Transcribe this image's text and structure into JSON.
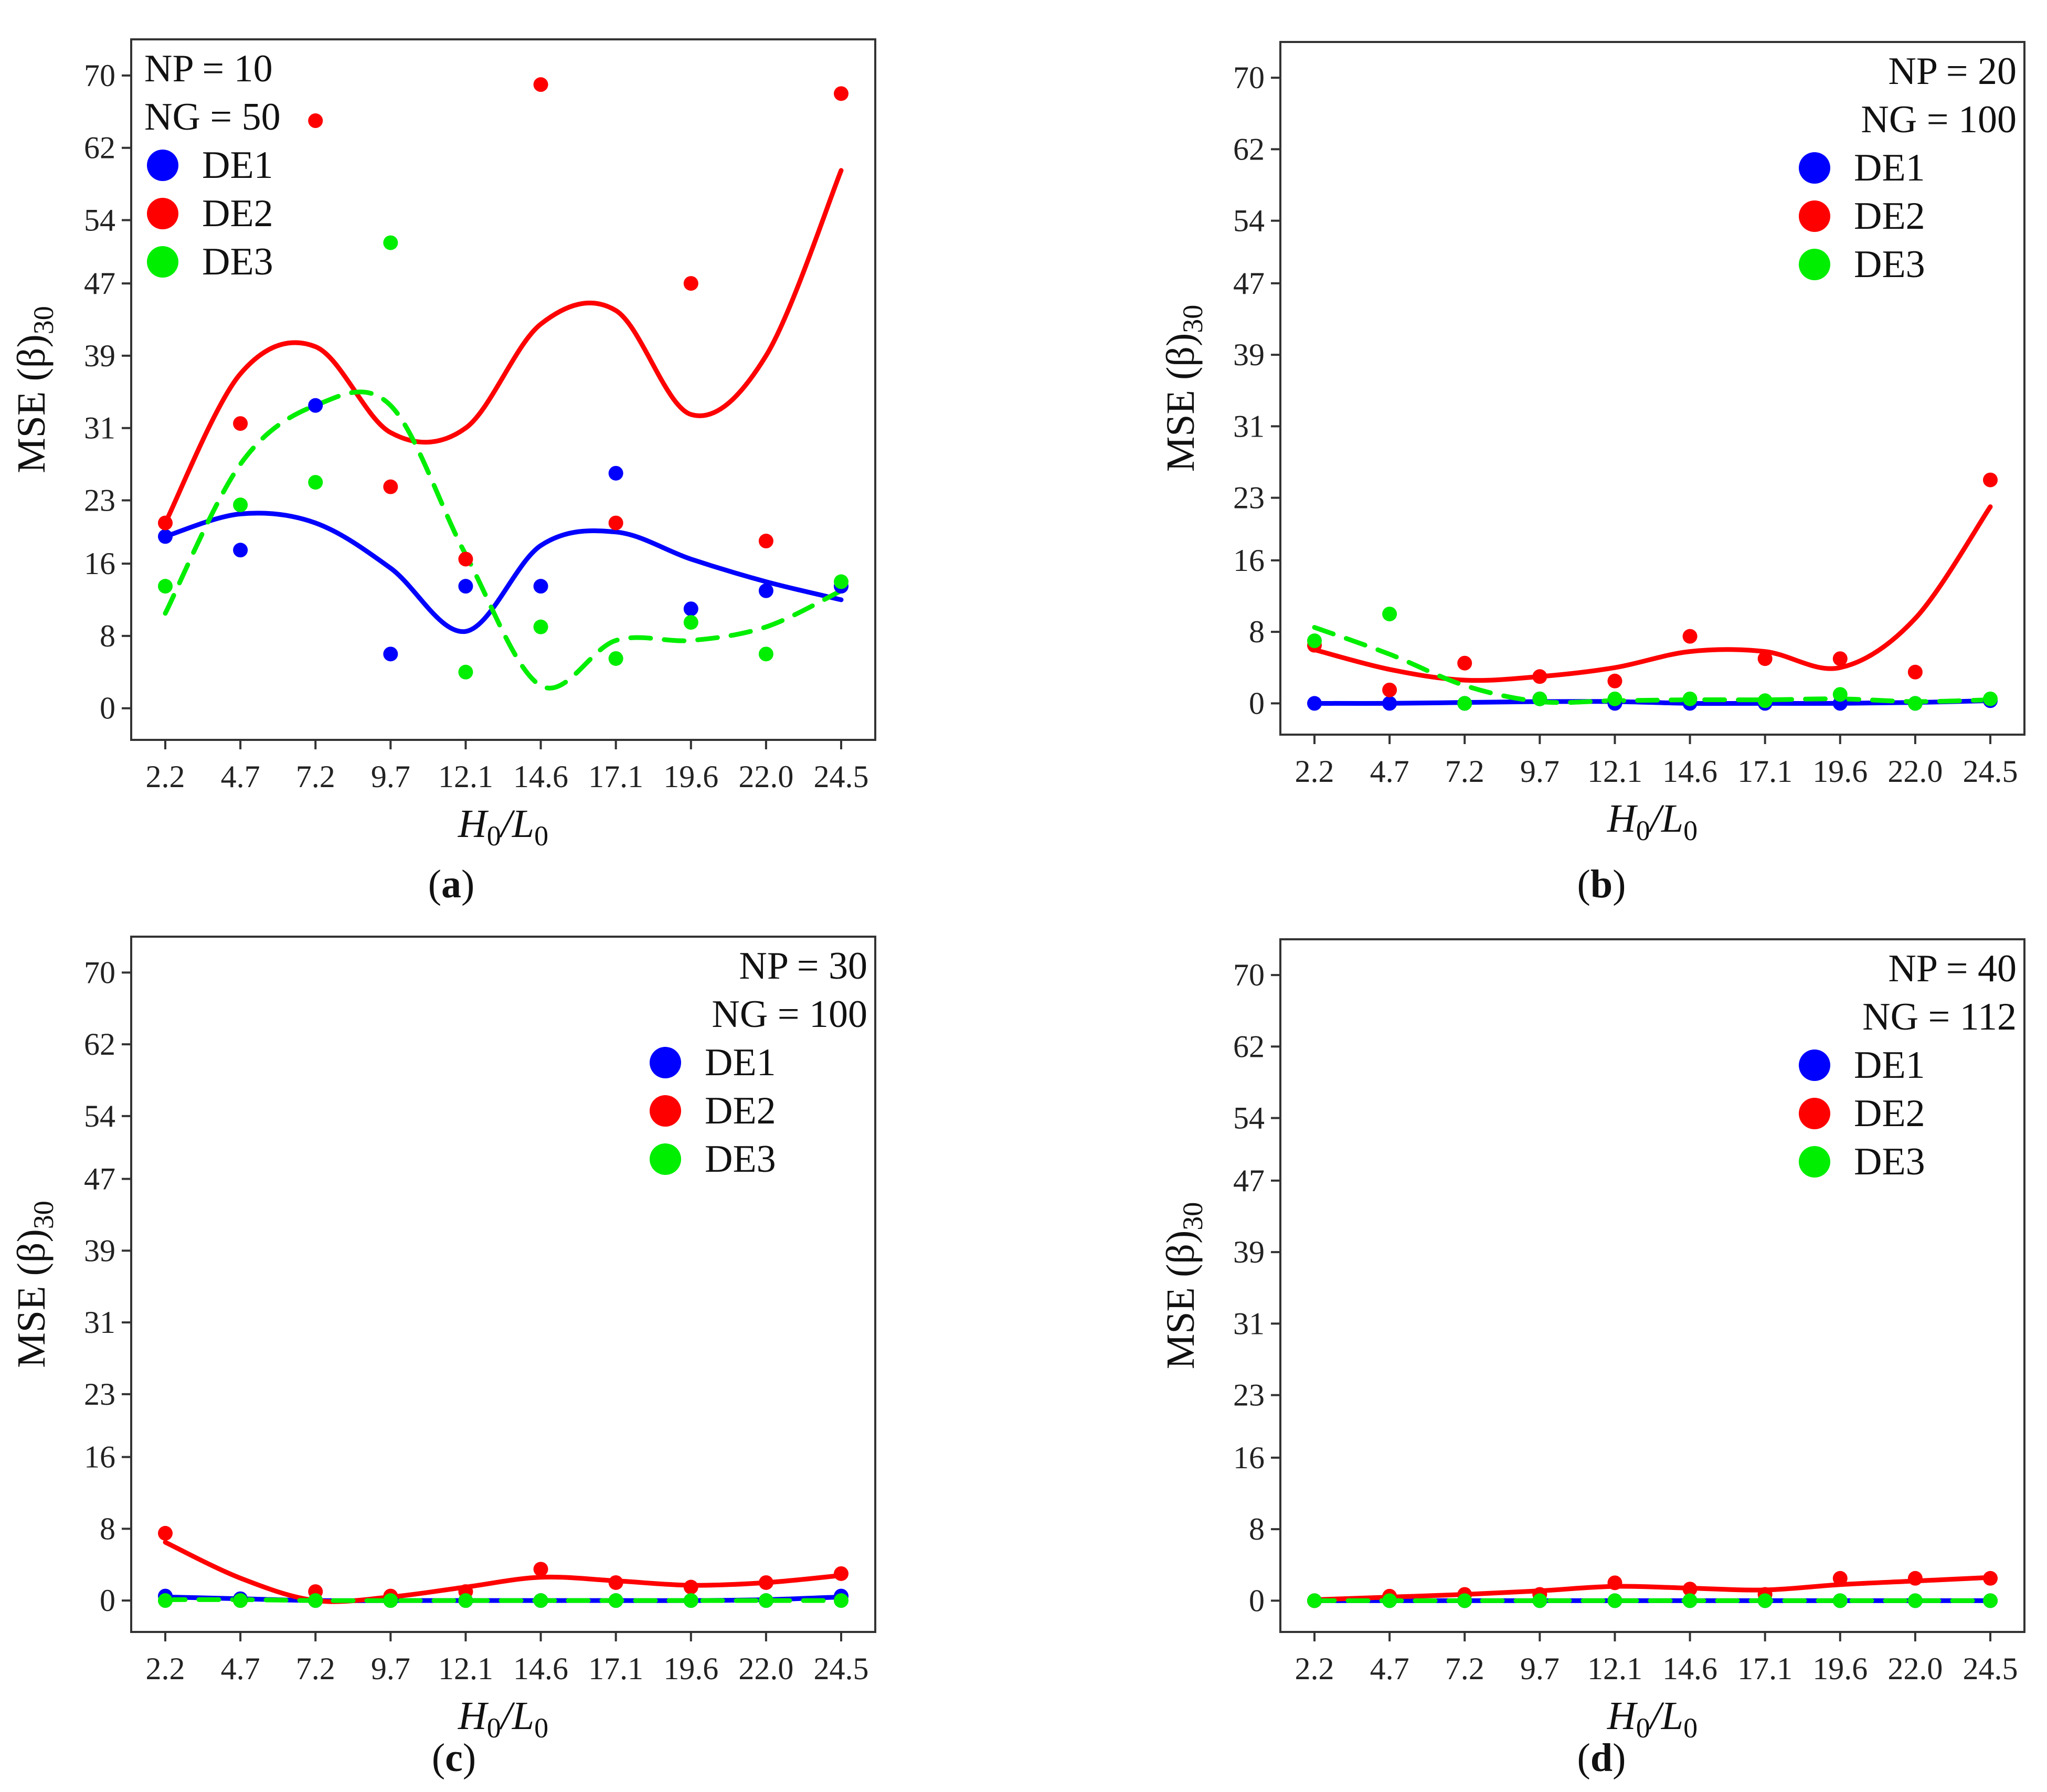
{
  "figure": {
    "captions": [
      {
        "open": "(",
        "letter": "a",
        "close": ")"
      },
      {
        "open": "(",
        "letter": "b",
        "close": ")"
      },
      {
        "open": "(",
        "letter": "c",
        "close": ")"
      },
      {
        "open": "(",
        "letter": "d",
        "close": ")"
      }
    ]
  },
  "colors": {
    "DE1": "#0000ff",
    "DE2": "#ff0000",
    "DE3": "#00ee00",
    "axis": "#333333"
  },
  "chart_data": [
    {
      "type": "scatter",
      "panel": "a",
      "annotations": [
        "NP = 10",
        "NG = 50"
      ],
      "legend": [
        "DE1",
        "DE2",
        "DE3"
      ],
      "legend_position": "top-left",
      "xlabel": {
        "main1": "H",
        "sub1": "0",
        "slash": "/",
        "main2": "L",
        "sub2": "0"
      },
      "ylabel": {
        "main": "MSE (β)",
        "sub": "30"
      },
      "x_ticks": [
        "2.2",
        "4.7",
        "7.2",
        "9.7",
        "12.1",
        "14.6",
        "17.1",
        "19.6",
        "22.0",
        "24.5"
      ],
      "y_ticks": [
        "0",
        "8",
        "16",
        "23",
        "31",
        "39",
        "47",
        "54",
        "62",
        "70"
      ],
      "y_tick_values": [
        0,
        8,
        16,
        23,
        31,
        39,
        47,
        54,
        62,
        70
      ],
      "ylim": [
        -3.5,
        74
      ],
      "series": [
        {
          "name": "DE1",
          "points": [
            19,
            17.5,
            33.5,
            6,
            13.5,
            13.5,
            26,
            11,
            13,
            13.5
          ],
          "smooth": [
            19,
            21.5,
            20.5,
            15.5,
            8.5,
            18,
            19.5,
            16.5,
            14,
            12
          ],
          "dashed": false
        },
        {
          "name": "DE2",
          "points": [
            20.5,
            31.5,
            65,
            24.5,
            16.5,
            69,
            20.5,
            47,
            18.5,
            68
          ],
          "smooth": [
            20.5,
            37,
            40,
            30.5,
            31,
            42.5,
            44,
            32.5,
            39,
            59.5
          ],
          "dashed": false
        },
        {
          "name": "DE3",
          "points": [
            13.5,
            22.5,
            25,
            51.5,
            4,
            9,
            5.5,
            9.5,
            6,
            14
          ],
          "smooth": [
            10.5,
            27,
            33.5,
            33.5,
            17,
            2.5,
            7.5,
            7.5,
            9,
            13
          ],
          "dashed": true
        }
      ]
    },
    {
      "type": "scatter",
      "panel": "b",
      "annotations": [
        "NP = 20",
        "NG = 100"
      ],
      "legend": [
        "DE1",
        "DE2",
        "DE3"
      ],
      "legend_position": "top-right",
      "xlabel": {
        "main1": "H",
        "sub1": "0",
        "slash": "/",
        "main2": "L",
        "sub2": "0"
      },
      "ylabel": {
        "main": "MSE (β)",
        "sub": "30"
      },
      "x_ticks": [
        "2.2",
        "4.7",
        "7.2",
        "9.7",
        "12.1",
        "14.6",
        "17.1",
        "19.6",
        "22.0",
        "24.5"
      ],
      "y_ticks": [
        "0",
        "8",
        "16",
        "23",
        "31",
        "39",
        "47",
        "54",
        "62",
        "70"
      ],
      "y_tick_values": [
        0,
        8,
        16,
        23,
        31,
        39,
        47,
        54,
        62,
        70
      ],
      "ylim": [
        -3.5,
        74
      ],
      "series": [
        {
          "name": "DE1",
          "points": [
            0,
            0,
            0,
            0.5,
            0,
            0,
            0,
            0,
            0,
            0.3
          ],
          "smooth": [
            0,
            0,
            0.1,
            0.2,
            0.2,
            0,
            0,
            0,
            0.1,
            0.3
          ],
          "dashed": false
        },
        {
          "name": "DE2",
          "points": [
            6.5,
            1.5,
            4.5,
            3,
            2.5,
            7.5,
            5,
            5,
            3.5,
            25
          ],
          "smooth": [
            6,
            3.8,
            2.6,
            3,
            4,
            5.8,
            5.8,
            4,
            9.5,
            22
          ],
          "dashed": false
        },
        {
          "name": "DE3",
          "points": [
            7,
            10,
            0,
            0.5,
            0.5,
            0.5,
            0.3,
            1,
            0,
            0.5
          ],
          "smooth": [
            8.5,
            5.5,
            2,
            0.2,
            0.3,
            0.4,
            0.4,
            0.5,
            0.2,
            0.4
          ],
          "dashed": true
        }
      ]
    },
    {
      "type": "scatter",
      "panel": "c",
      "annotations": [
        "NP = 30",
        "NG = 100"
      ],
      "legend": [
        "DE1",
        "DE2",
        "DE3"
      ],
      "legend_position": "top-right",
      "xlabel": {
        "main1": "H",
        "sub1": "0",
        "slash": "/",
        "main2": "L",
        "sub2": "0"
      },
      "ylabel": {
        "main": "MSE (β)",
        "sub": "30"
      },
      "x_ticks": [
        "2.2",
        "4.7",
        "7.2",
        "9.7",
        "12.1",
        "14.6",
        "17.1",
        "19.6",
        "22.0",
        "24.5"
      ],
      "y_ticks": [
        "0",
        "8",
        "16",
        "23",
        "31",
        "39",
        "47",
        "54",
        "62",
        "70"
      ],
      "y_tick_values": [
        0,
        8,
        16,
        23,
        31,
        39,
        47,
        54,
        62,
        70
      ],
      "ylim": [
        -3.5,
        74
      ],
      "series": [
        {
          "name": "DE1",
          "points": [
            0.5,
            0.2,
            0,
            0,
            0,
            0,
            0,
            0,
            0,
            0.5
          ],
          "smooth": [
            0.4,
            0.2,
            0,
            0,
            0,
            0,
            0,
            0,
            0.1,
            0.4
          ],
          "dashed": false
        },
        {
          "name": "DE2",
          "points": [
            7.5,
            0,
            1,
            0.5,
            1,
            3.5,
            2,
            1.5,
            2,
            3
          ],
          "smooth": [
            6.5,
            2.5,
            0,
            0.4,
            1.5,
            2.6,
            2.2,
            1.7,
            2,
            2.8
          ],
          "dashed": false
        },
        {
          "name": "DE3",
          "points": [
            0,
            0,
            0,
            0,
            0,
            0,
            0,
            0,
            0,
            0
          ],
          "smooth": [
            0.1,
            0.1,
            0,
            0,
            0,
            0,
            0,
            0,
            0,
            0
          ],
          "dashed": true
        }
      ]
    },
    {
      "type": "scatter",
      "panel": "d",
      "annotations": [
        "NP = 40",
        "NG = 112"
      ],
      "legend": [
        "DE1",
        "DE2",
        "DE3"
      ],
      "legend_position": "top-right",
      "xlabel": {
        "main1": "H",
        "sub1": "0",
        "slash": "/",
        "main2": "L",
        "sub2": "0"
      },
      "ylabel": {
        "main": "MSE (β)",
        "sub": "30"
      },
      "x_ticks": [
        "2.2",
        "4.7",
        "7.2",
        "9.7",
        "12.1",
        "14.6",
        "17.1",
        "19.6",
        "22.0",
        "24.5"
      ],
      "y_ticks": [
        "0",
        "8",
        "16",
        "23",
        "31",
        "39",
        "47",
        "54",
        "62",
        "70"
      ],
      "y_tick_values": [
        0,
        8,
        16,
        23,
        31,
        39,
        47,
        54,
        62,
        70
      ],
      "ylim": [
        -3.5,
        74
      ],
      "series": [
        {
          "name": "DE1",
          "points": [
            0,
            0,
            0,
            0,
            0,
            0,
            0,
            0,
            0,
            0
          ],
          "smooth": [
            0,
            0,
            0,
            0,
            0,
            0,
            0,
            0,
            0,
            0
          ],
          "dashed": false
        },
        {
          "name": "DE2",
          "points": [
            0,
            0.5,
            0.7,
            0.7,
            2,
            1.3,
            0.7,
            2.5,
            2.5,
            2.5
          ],
          "smooth": [
            0.1,
            0.4,
            0.7,
            1.1,
            1.6,
            1.4,
            1.2,
            1.8,
            2.2,
            2.6
          ],
          "dashed": false
        },
        {
          "name": "DE3",
          "points": [
            0,
            0,
            0,
            0,
            0,
            0,
            0,
            0,
            0,
            0
          ],
          "smooth": [
            0,
            0,
            0,
            0,
            0,
            0,
            0,
            0,
            0,
            0
          ],
          "dashed": true
        }
      ]
    }
  ]
}
